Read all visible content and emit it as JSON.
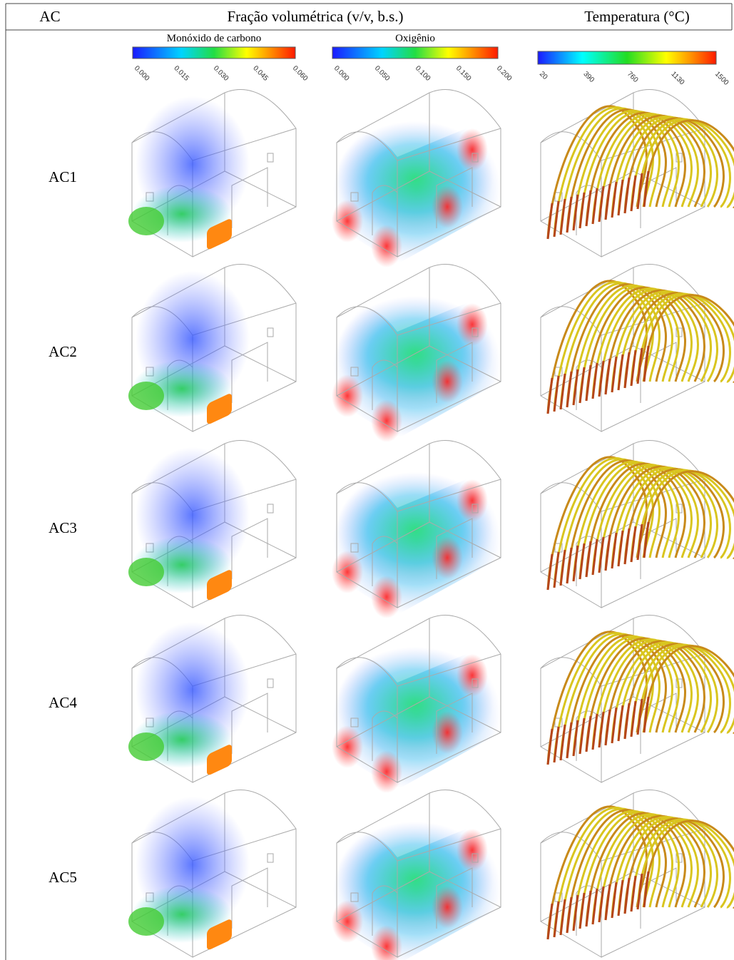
{
  "header": [
    "AC",
    "Fração volumétrica (v/v, b.s.)",
    "Temperatura (°C)"
  ],
  "colorbars": [
    {
      "title": "Monóxido de carbono",
      "ticks": [
        "0.000",
        "0.015",
        "0.030",
        "0.045",
        "0.060"
      ]
    },
    {
      "title": "Oxigênio",
      "ticks": [
        "0.000",
        "0.050",
        "0.100",
        "0.150",
        "0.200"
      ]
    },
    {
      "ticks": [
        "20",
        "390",
        "760",
        "1130",
        "1500"
      ]
    }
  ],
  "rows": [
    "AC1",
    "AC2",
    "AC3",
    "AC4",
    "AC5"
  ]
}
